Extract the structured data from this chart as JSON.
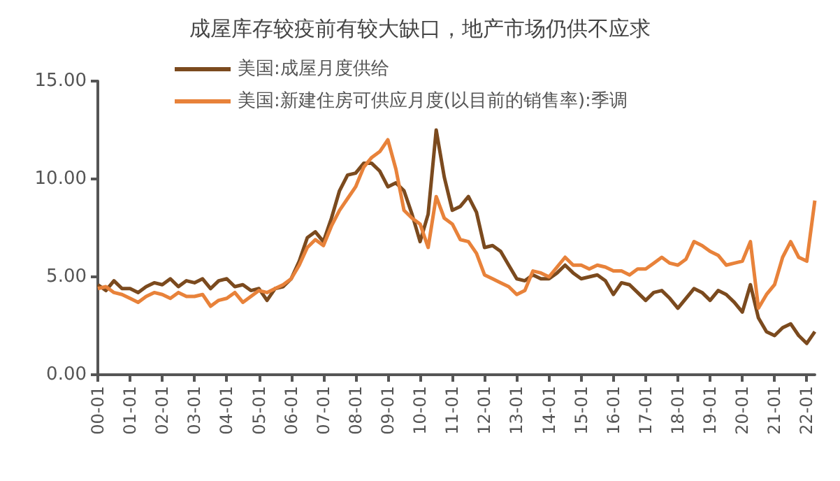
{
  "chart_data": {
    "type": "line",
    "title": "成屋库存较疫前有较大缺口，地产市场仍供不应求",
    "categories": [
      "00-01",
      null,
      null,
      null,
      "01-01",
      null,
      null,
      null,
      "02-01",
      null,
      null,
      null,
      "03-01",
      null,
      null,
      null,
      "04-01",
      null,
      null,
      null,
      "05-01",
      null,
      null,
      null,
      "06-01",
      null,
      null,
      null,
      "07-01",
      null,
      null,
      null,
      "08-01",
      null,
      null,
      null,
      "09-01",
      null,
      null,
      null,
      "10-01",
      null,
      null,
      null,
      "11-01",
      null,
      null,
      null,
      "12-01",
      null,
      null,
      null,
      "13-01",
      null,
      null,
      null,
      "14-01",
      null,
      null,
      null,
      "15-01",
      null,
      null,
      null,
      "16-01",
      null,
      null,
      null,
      "17-01",
      null,
      null,
      null,
      "18-01",
      null,
      null,
      null,
      "19-01",
      null,
      null,
      null,
      "20-01",
      null,
      null,
      null,
      "21-01",
      null,
      null,
      null,
      "22-01",
      null
    ],
    "series": [
      {
        "name": "美国:成屋月度供给",
        "color": "#7b4a1e",
        "values": [
          4.6,
          4.3,
          4.8,
          4.4,
          4.4,
          4.2,
          4.5,
          4.7,
          4.6,
          4.9,
          4.5,
          4.8,
          4.7,
          4.9,
          4.4,
          4.8,
          4.9,
          4.5,
          4.6,
          4.3,
          4.4,
          3.8,
          4.4,
          4.5,
          4.9,
          5.8,
          7.0,
          7.3,
          6.8,
          8.0,
          9.4,
          10.2,
          10.3,
          10.8,
          10.8,
          10.4,
          9.6,
          9.8,
          9.4,
          8.2,
          6.8,
          8.2,
          12.5,
          10.1,
          8.4,
          8.6,
          9.1,
          8.3,
          6.5,
          6.6,
          6.3,
          5.6,
          4.9,
          4.8,
          5.1,
          4.9,
          4.9,
          5.2,
          5.6,
          5.2,
          4.9,
          5.0,
          5.1,
          4.8,
          4.1,
          4.7,
          4.6,
          4.2,
          3.8,
          4.2,
          4.3,
          3.9,
          3.4,
          3.9,
          4.4,
          4.2,
          3.8,
          4.3,
          4.1,
          3.7,
          3.2,
          4.6,
          2.9,
          2.2,
          2.0,
          2.4,
          2.6,
          2.0,
          1.6,
          2.2
        ]
      },
      {
        "name": "美国:新建住房可供应月度(以目前的销售率):季调",
        "color": "#e8823a",
        "values": [
          4.4,
          4.5,
          4.2,
          4.1,
          3.9,
          3.7,
          4.0,
          4.2,
          4.1,
          3.9,
          4.2,
          4.0,
          4.0,
          4.1,
          3.5,
          3.8,
          3.9,
          4.2,
          3.7,
          4.0,
          4.3,
          4.2,
          4.4,
          4.6,
          4.9,
          5.6,
          6.5,
          6.9,
          6.6,
          7.6,
          8.4,
          9.0,
          9.6,
          10.6,
          11.1,
          11.4,
          12.0,
          10.5,
          8.4,
          8.0,
          7.7,
          6.5,
          9.1,
          8.0,
          7.7,
          6.9,
          6.8,
          6.2,
          5.1,
          4.9,
          4.7,
          4.5,
          4.1,
          4.3,
          5.3,
          5.2,
          5.0,
          5.5,
          6.0,
          5.6,
          5.6,
          5.4,
          5.6,
          5.5,
          5.3,
          5.3,
          5.1,
          5.4,
          5.4,
          5.7,
          6.0,
          5.7,
          5.6,
          5.9,
          6.8,
          6.6,
          6.3,
          6.1,
          5.6,
          5.7,
          5.8,
          6.8,
          3.4,
          4.1,
          4.6,
          6.0,
          6.8,
          6.0,
          5.8,
          8.9
        ]
      }
    ],
    "ylim": [
      0,
      15
    ],
    "yticks": [
      {
        "value": 0,
        "label": "0.00"
      },
      {
        "value": 5,
        "label": "5.00"
      },
      {
        "value": 10,
        "label": "10.00"
      },
      {
        "value": 15,
        "label": "15.00"
      }
    ],
    "grid": false,
    "legend": "top",
    "marker": "none",
    "line_style": "solid"
  }
}
